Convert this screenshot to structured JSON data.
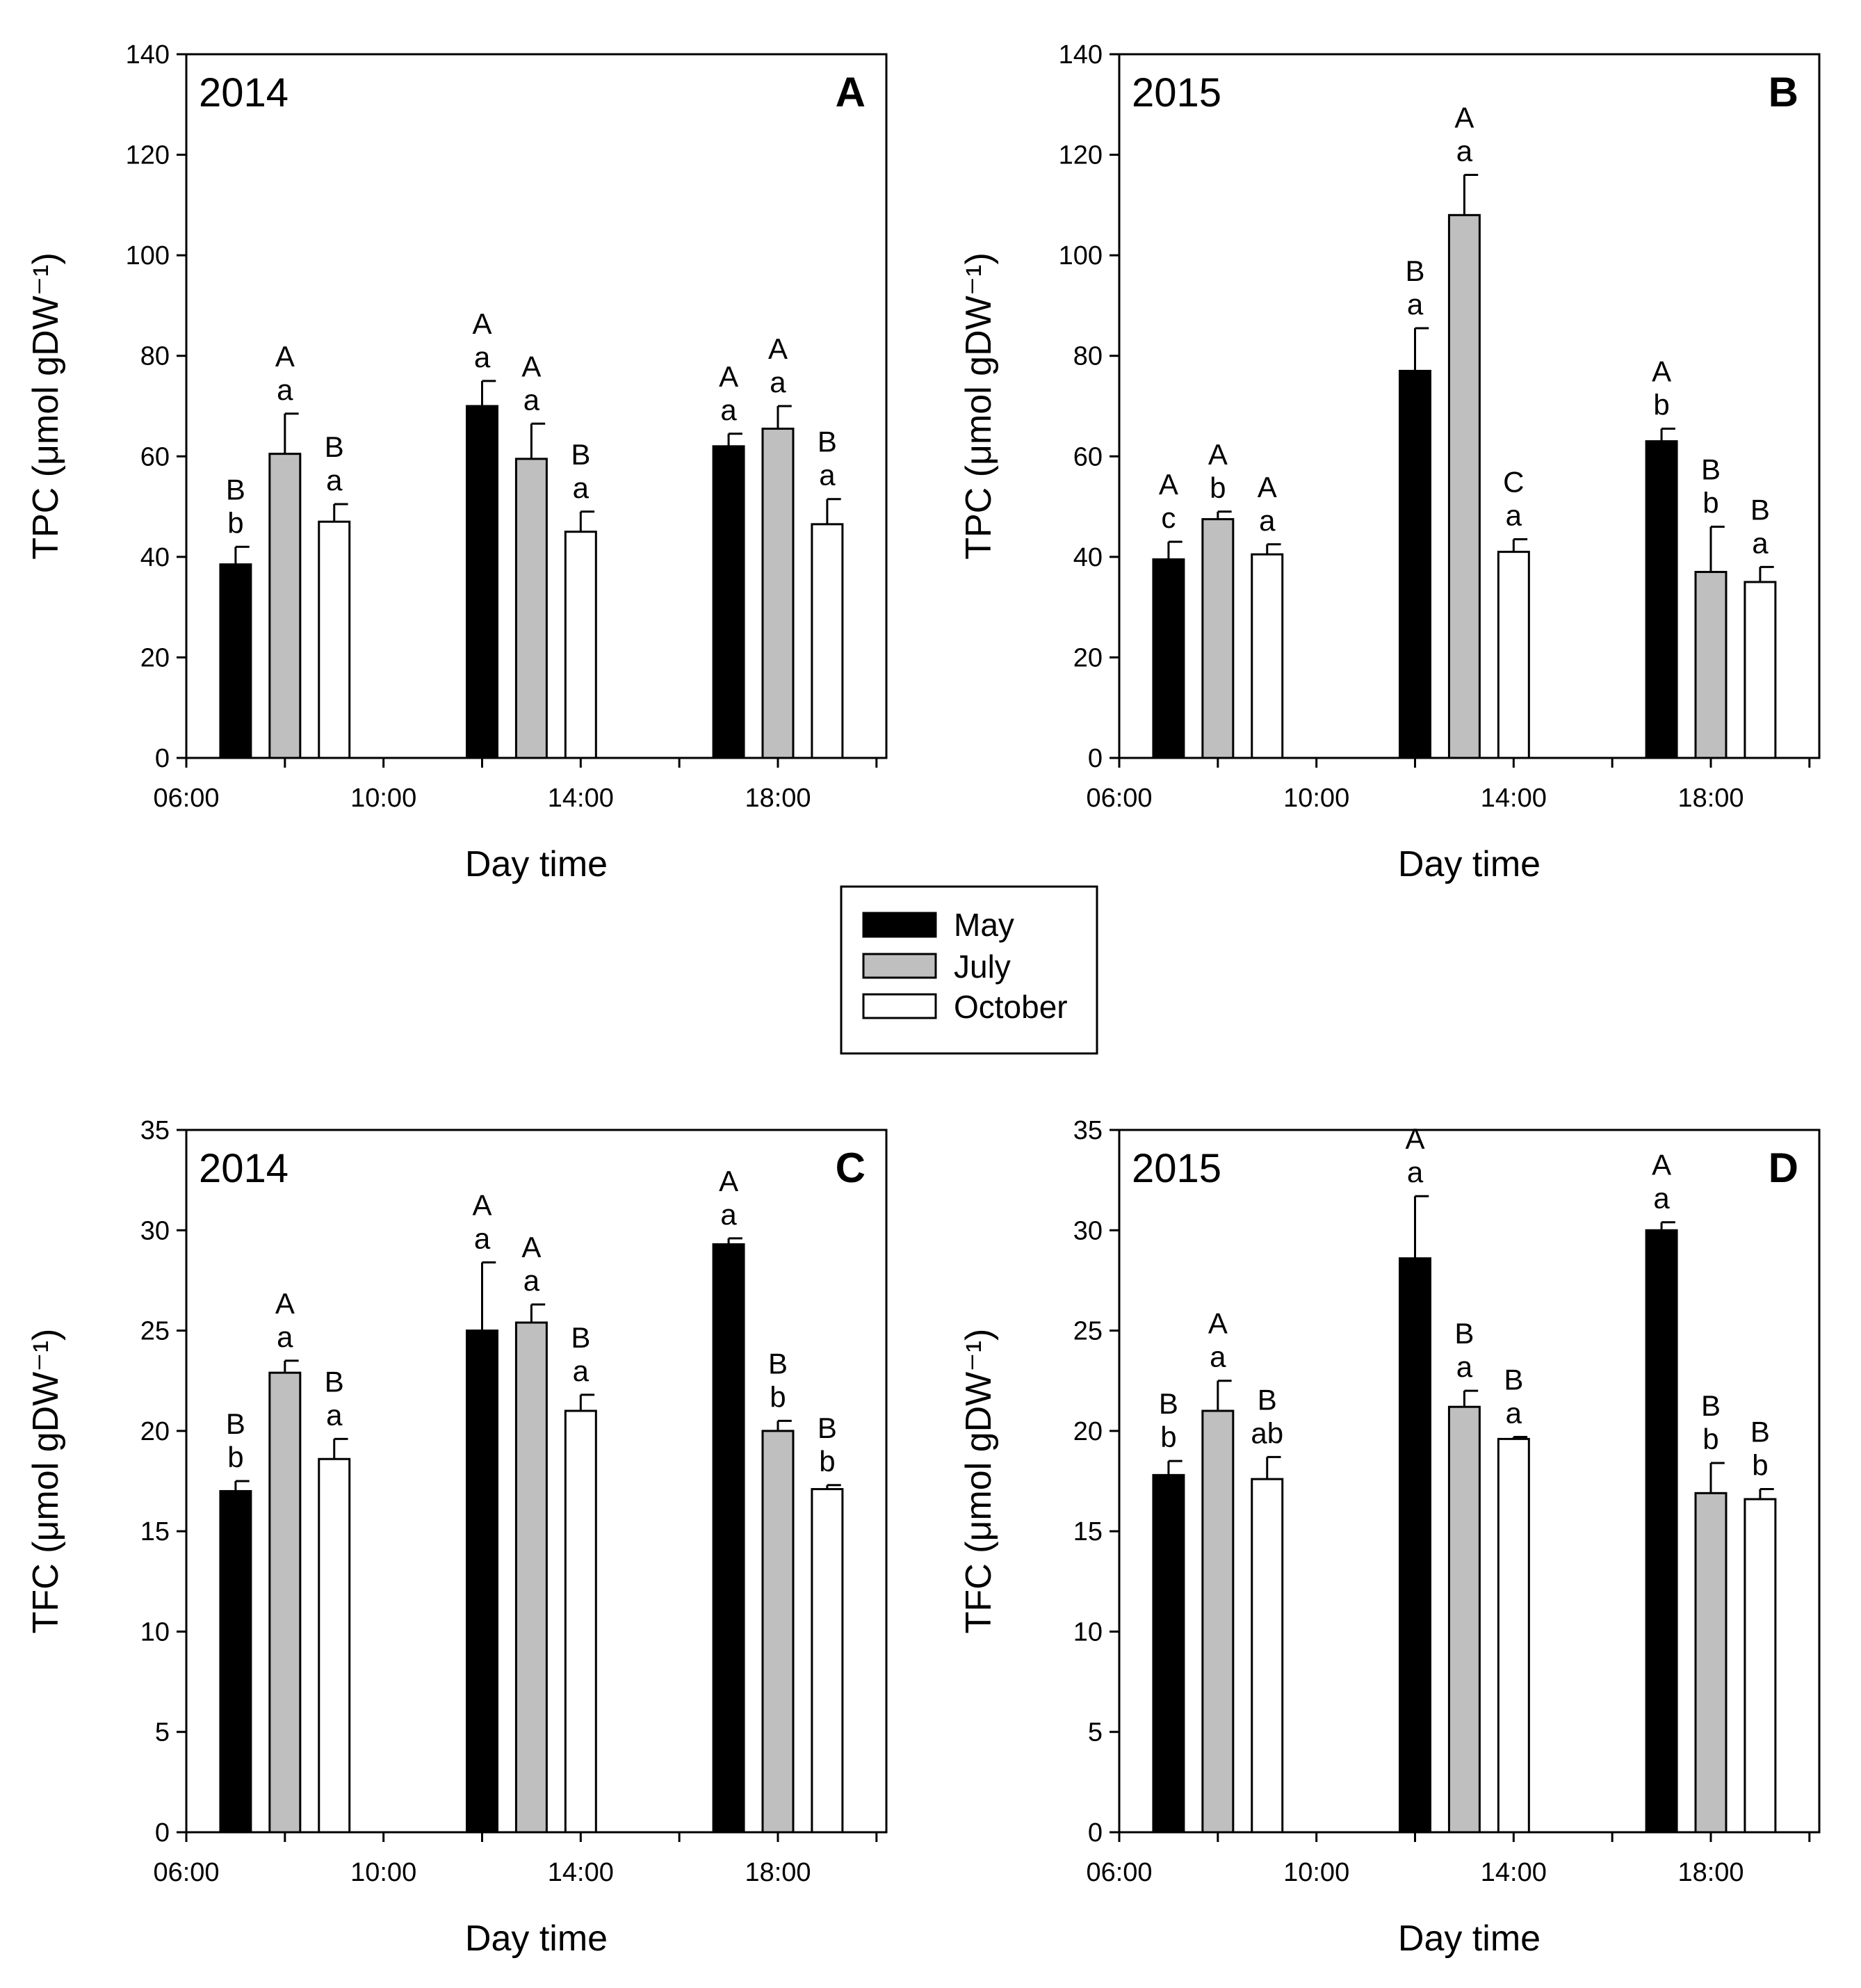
{
  "legend": {
    "items": [
      {
        "label": "May",
        "color": "#000000"
      },
      {
        "label": "July",
        "color": "#bfbfbf"
      },
      {
        "label": "October",
        "color": "#ffffff"
      }
    ]
  },
  "chart_data": [
    {
      "type": "bar",
      "panel": "A",
      "year": "2014",
      "xlabel": "Day time",
      "ylabel": "TPC (μmol gDW⁻¹)",
      "ylim": [
        0,
        140
      ],
      "yticks": [
        0,
        20,
        40,
        60,
        80,
        100,
        120,
        140
      ],
      "xticks": [
        "06:00",
        "10:00",
        "14:00",
        "18:00"
      ],
      "series": [
        {
          "name": "May",
          "values": [
            38.5,
            70,
            62
          ],
          "errors": [
            3.5,
            5,
            2.5
          ],
          "upper": [
            "B",
            "A",
            "A"
          ],
          "lower": [
            "b",
            "a",
            "a"
          ]
        },
        {
          "name": "July",
          "values": [
            60.5,
            59.5,
            65.5
          ],
          "errors": [
            8,
            7,
            4.5
          ],
          "upper": [
            "A",
            "A",
            "A"
          ],
          "lower": [
            "a",
            "a",
            "a"
          ]
        },
        {
          "name": "October",
          "values": [
            47,
            45,
            46.5
          ],
          "errors": [
            3.5,
            4,
            5
          ],
          "upper": [
            "B",
            "B",
            "B"
          ],
          "lower": [
            "a",
            "a",
            "a"
          ]
        }
      ]
    },
    {
      "type": "bar",
      "panel": "B",
      "year": "2015",
      "xlabel": "Day time",
      "ylabel": "TPC (μmol gDW⁻¹)",
      "ylim": [
        0,
        140
      ],
      "yticks": [
        0,
        20,
        40,
        60,
        80,
        100,
        120,
        140
      ],
      "xticks": [
        "06:00",
        "10:00",
        "14:00",
        "18:00"
      ],
      "series": [
        {
          "name": "May",
          "values": [
            39.5,
            77,
            63
          ],
          "errors": [
            3.5,
            8.5,
            2.5
          ],
          "upper": [
            "A",
            "B",
            "A"
          ],
          "lower": [
            "c",
            "a",
            "b"
          ]
        },
        {
          "name": "July",
          "values": [
            47.5,
            108,
            37
          ],
          "errors": [
            1.5,
            8,
            9
          ],
          "upper": [
            "A",
            "A",
            "B"
          ],
          "lower": [
            "b",
            "a",
            "b"
          ]
        },
        {
          "name": "October",
          "values": [
            40.5,
            41,
            35
          ],
          "errors": [
            2,
            2.5,
            3
          ],
          "upper": [
            "A",
            "C",
            "B"
          ],
          "lower": [
            "a",
            "a",
            "a"
          ]
        }
      ]
    },
    {
      "type": "bar",
      "panel": "C",
      "year": "2014",
      "xlabel": "Day time",
      "ylabel": "TFC (μmol gDW⁻¹)",
      "ylim": [
        0,
        35
      ],
      "yticks": [
        0,
        5,
        10,
        15,
        20,
        25,
        30,
        35
      ],
      "xticks": [
        "06:00",
        "10:00",
        "14:00",
        "18:00"
      ],
      "series": [
        {
          "name": "May",
          "values": [
            17,
            25,
            29.3
          ],
          "errors": [
            0.5,
            3.4,
            0.3
          ],
          "upper": [
            "B",
            "A",
            "A"
          ],
          "lower": [
            "b",
            "a",
            "a"
          ]
        },
        {
          "name": "July",
          "values": [
            22.9,
            25.4,
            20
          ],
          "errors": [
            0.6,
            0.9,
            0.5
          ],
          "upper": [
            "A",
            "A",
            "B"
          ],
          "lower": [
            "a",
            "a",
            "b"
          ]
        },
        {
          "name": "October",
          "values": [
            18.6,
            21,
            17.1
          ],
          "errors": [
            1,
            0.8,
            0.2
          ],
          "upper": [
            "B",
            "B",
            "B"
          ],
          "lower": [
            "a",
            "a",
            "b"
          ]
        }
      ]
    },
    {
      "type": "bar",
      "panel": "D",
      "year": "2015",
      "xlabel": "Day time",
      "ylabel": "TFC (μmol gDW⁻¹)",
      "ylim": [
        0,
        35
      ],
      "yticks": [
        0,
        5,
        10,
        15,
        20,
        25,
        30,
        35
      ],
      "xticks": [
        "06:00",
        "10:00",
        "14:00",
        "18:00"
      ],
      "series": [
        {
          "name": "May",
          "values": [
            17.8,
            28.6,
            30
          ],
          "errors": [
            0.7,
            3.1,
            0.4
          ],
          "upper": [
            "B",
            "A",
            "A"
          ],
          "lower": [
            "b",
            "a",
            "a"
          ]
        },
        {
          "name": "July",
          "values": [
            21,
            21.2,
            16.9
          ],
          "errors": [
            1.5,
            0.8,
            1.5
          ],
          "upper": [
            "A",
            "B",
            "B"
          ],
          "lower": [
            "a",
            "a",
            "b"
          ]
        },
        {
          "name": "October",
          "values": [
            17.6,
            19.6,
            16.6
          ],
          "errors": [
            1.1,
            0.1,
            0.5
          ],
          "upper": [
            "B",
            "B",
            "B"
          ],
          "lower": [
            "ab",
            "a",
            "b"
          ]
        }
      ]
    }
  ]
}
